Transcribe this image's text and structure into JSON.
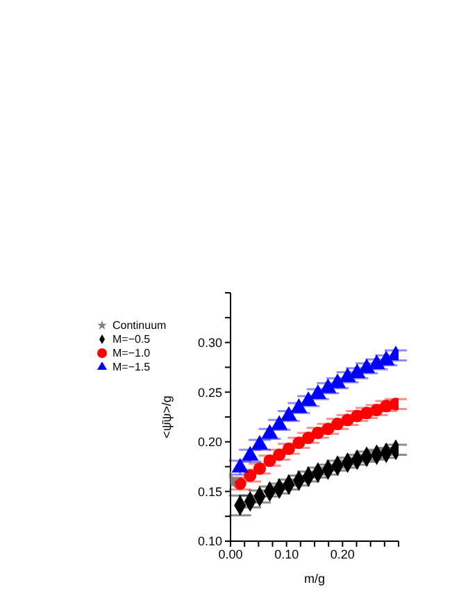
{
  "chart_data": {
    "type": "scatter",
    "xlabel": "m/g",
    "ylabel": "<ψ̄ψ>/g",
    "xlim": [
      0,
      0.3
    ],
    "ylim": [
      0.1,
      0.35
    ],
    "xticks": [
      {
        "value": 0,
        "label": "0.00"
      },
      {
        "value": 0.025,
        "label": null
      },
      {
        "value": 0.05,
        "label": null
      },
      {
        "value": 0.075,
        "label": null
      },
      {
        "value": 0.1,
        "label": "0.10"
      },
      {
        "value": 0.125,
        "label": null
      },
      {
        "value": 0.15,
        "label": null
      },
      {
        "value": 0.175,
        "label": null
      },
      {
        "value": 0.2,
        "label": "0.20"
      },
      {
        "value": 0.225,
        "label": null
      },
      {
        "value": 0.25,
        "label": null
      },
      {
        "value": 0.275,
        "label": null
      },
      {
        "value": 0.3,
        "label": null
      }
    ],
    "yticks": [
      {
        "value": 0.1,
        "label": "0.10"
      },
      {
        "value": 0.125,
        "label": null
      },
      {
        "value": 0.15,
        "label": "0.15"
      },
      {
        "value": 0.175,
        "label": null
      },
      {
        "value": 0.2,
        "label": "0.20"
      },
      {
        "value": 0.225,
        "label": null
      },
      {
        "value": 0.25,
        "label": "0.25"
      },
      {
        "value": 0.275,
        "label": null
      },
      {
        "value": 0.3,
        "label": "0.30"
      },
      {
        "value": 0.325,
        "label": null
      },
      {
        "value": 0.35,
        "label": null
      }
    ],
    "x": [
      0.017,
      0.035,
      0.052,
      0.07,
      0.087,
      0.104,
      0.122,
      0.139,
      0.156,
      0.174,
      0.191,
      0.209,
      0.226,
      0.243,
      0.261,
      0.278,
      0.295
    ],
    "legend": "top left",
    "grid": false,
    "series": [
      {
        "name": "M=−0.5",
        "color": "#000000",
        "marker": "diamond",
        "values": [
          0.136,
          0.14,
          0.145,
          0.15,
          0.153,
          0.157,
          0.161,
          0.165,
          0.169,
          0.172,
          0.176,
          0.179,
          0.182,
          0.185,
          0.187,
          0.189,
          0.192
        ],
        "errors": [
          0.01,
          0.006,
          0.006,
          0.005,
          0.005,
          0.005,
          0.005,
          0.005,
          0.005,
          0.005,
          0.005,
          0.005,
          0.005,
          0.005,
          0.005,
          0.005,
          0.005
        ]
      },
      {
        "name": "M=−1.0",
        "color": "#ff0000",
        "marker": "circle",
        "values": [
          0.158,
          0.166,
          0.173,
          0.181,
          0.187,
          0.193,
          0.199,
          0.204,
          0.209,
          0.213,
          0.218,
          0.222,
          0.226,
          0.229,
          0.232,
          0.236,
          0.238
        ],
        "errors": [
          0.006,
          0.006,
          0.005,
          0.005,
          0.005,
          0.005,
          0.005,
          0.005,
          0.005,
          0.005,
          0.005,
          0.005,
          0.005,
          0.005,
          0.005,
          0.005,
          0.005
        ]
      },
      {
        "name": "M=−1.5",
        "color": "#0000ff",
        "marker": "triangle",
        "values": [
          0.174,
          0.186,
          0.197,
          0.208,
          0.217,
          0.226,
          0.234,
          0.241,
          0.248,
          0.254,
          0.259,
          0.265,
          0.269,
          0.274,
          0.278,
          0.282,
          0.287
        ],
        "errors": [
          0.007,
          0.006,
          0.005,
          0.005,
          0.005,
          0.005,
          0.005,
          0.005,
          0.005,
          0.005,
          0.005,
          0.005,
          0.005,
          0.005,
          0.005,
          0.005,
          0.005
        ]
      },
      {
        "name": "Continuum",
        "color": "#808080",
        "marker": "star",
        "x": [
          0
        ],
        "values": [
          0.161
        ]
      }
    ]
  }
}
